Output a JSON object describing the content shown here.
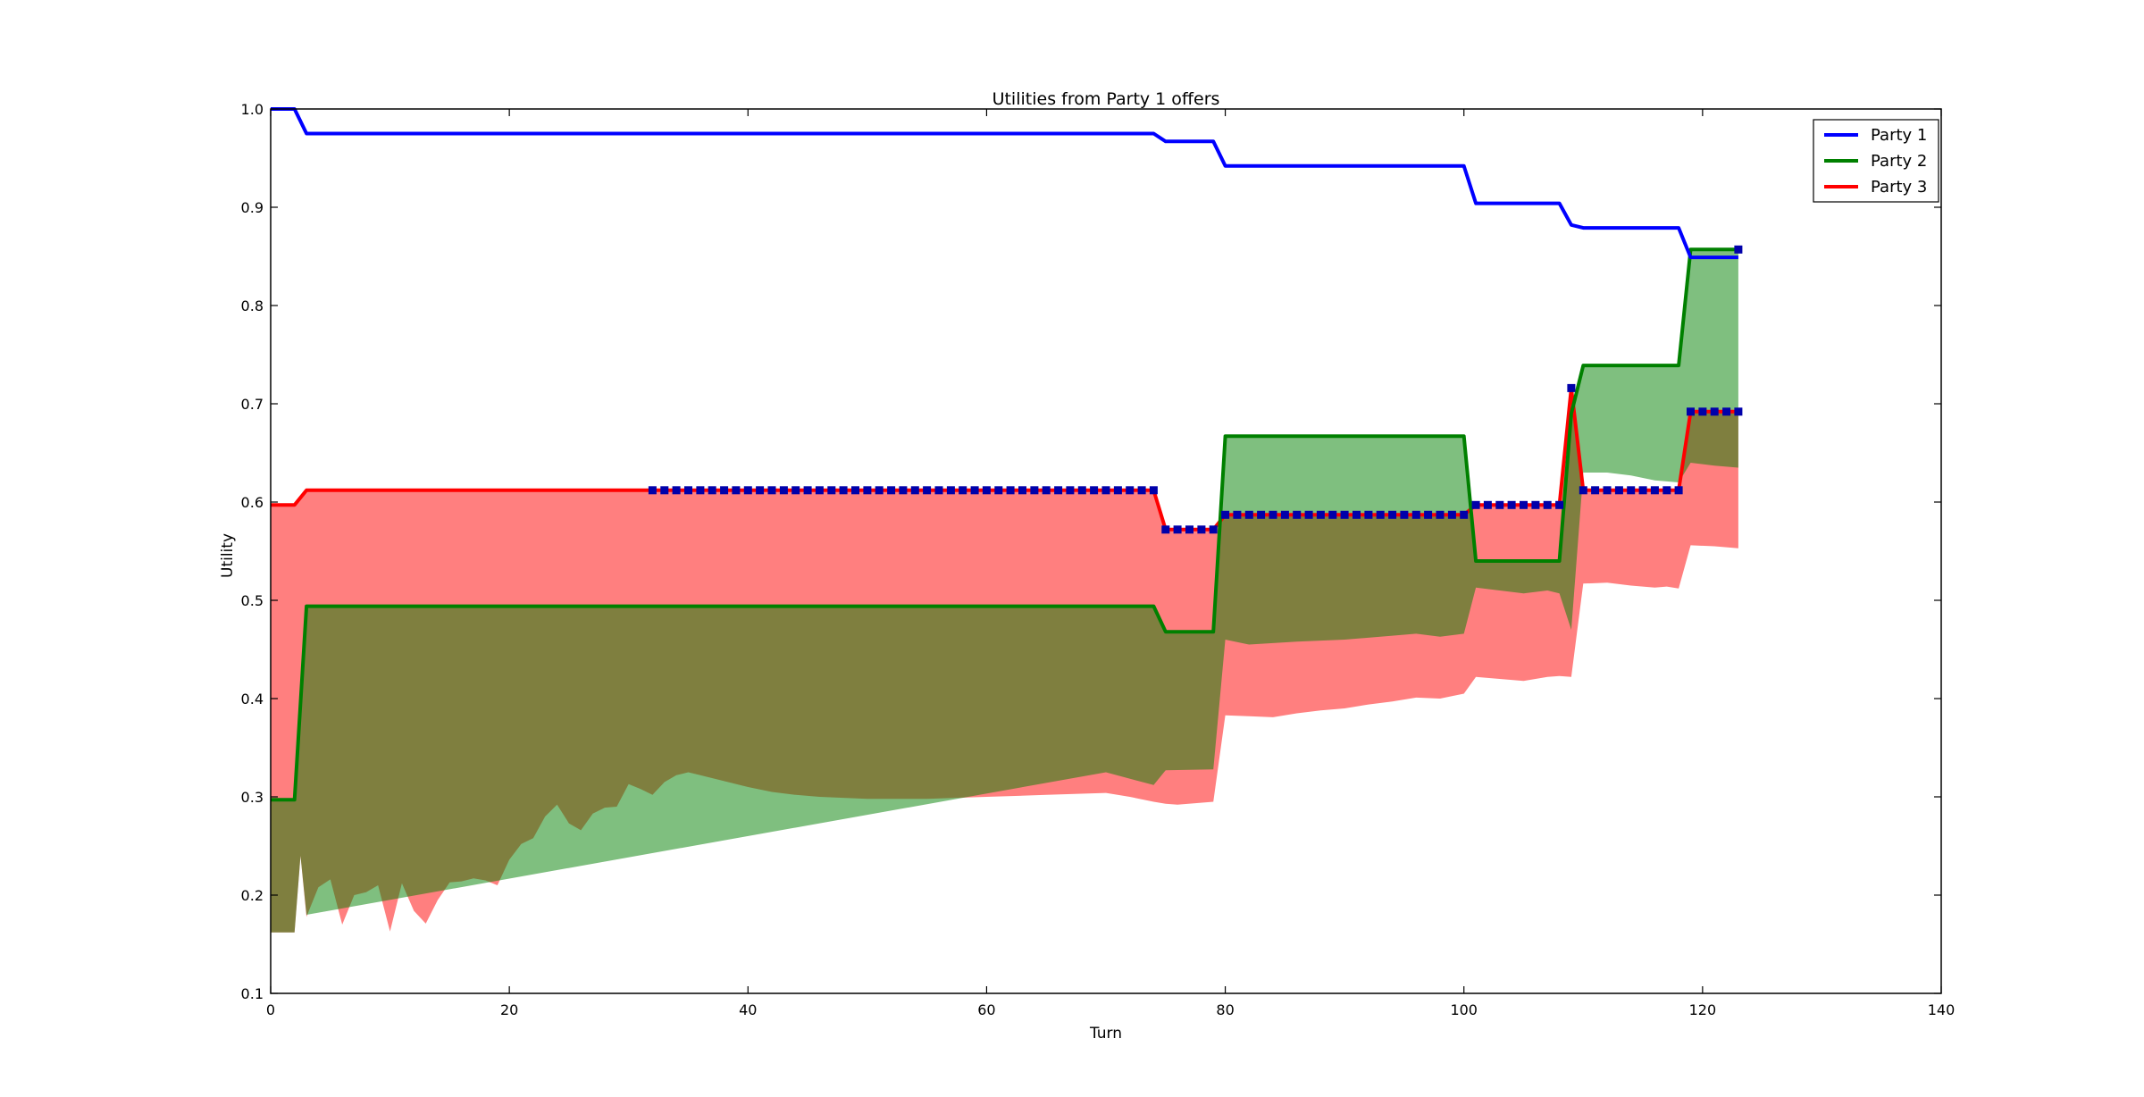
{
  "chart_data": {
    "type": "line",
    "title": "Utilities from Party 1 offers",
    "xlabel": "Turn",
    "ylabel": "Utility",
    "xlim": [
      0,
      140
    ],
    "ylim": [
      0.1,
      1.0
    ],
    "xticks": [
      0,
      20,
      40,
      60,
      80,
      100,
      120,
      140
    ],
    "yticks": [
      0.1,
      0.2,
      0.3,
      0.4,
      0.5,
      0.6,
      0.7,
      0.8,
      0.9,
      1.0
    ],
    "xtick_labels": [
      "0",
      "20",
      "40",
      "60",
      "80",
      "100",
      "120",
      "140"
    ],
    "ytick_labels": [
      "0.1",
      "0.2",
      "0.3",
      "0.4",
      "0.5",
      "0.6",
      "0.7",
      "0.8",
      "0.9",
      "1.0"
    ],
    "grid": false,
    "legend_position": "top-right",
    "series": [
      {
        "name": "Party 1",
        "color": "#0000ff",
        "points": [
          [
            0,
            1.0
          ],
          [
            2,
            1.0
          ],
          [
            3,
            0.975
          ],
          [
            74,
            0.975
          ],
          [
            75,
            0.967
          ],
          [
            79,
            0.967
          ],
          [
            80,
            0.942
          ],
          [
            100,
            0.942
          ],
          [
            101,
            0.904
          ],
          [
            108,
            0.904
          ],
          [
            109,
            0.882
          ],
          [
            110,
            0.879
          ],
          [
            118,
            0.879
          ],
          [
            119,
            0.849
          ],
          [
            123,
            0.849
          ]
        ]
      },
      {
        "name": "Party 2",
        "color": "#008000",
        "points": [
          [
            0,
            0.297
          ],
          [
            2,
            0.297
          ],
          [
            3,
            0.494
          ],
          [
            74,
            0.494
          ],
          [
            75,
            0.468
          ],
          [
            79,
            0.468
          ],
          [
            80,
            0.667
          ],
          [
            100,
            0.667
          ],
          [
            101,
            0.54
          ],
          [
            108,
            0.54
          ],
          [
            109,
            0.69
          ],
          [
            110,
            0.739
          ],
          [
            118,
            0.739
          ],
          [
            119,
            0.857
          ],
          [
            123,
            0.857
          ]
        ],
        "band_lower": [
          [
            0,
            0.162
          ],
          [
            1,
            0.162
          ],
          [
            2,
            0.162
          ],
          [
            2.5,
            0.24
          ],
          [
            3,
            0.18
          ]
        ]
      },
      {
        "name": "Party 3",
        "color": "#ff0000",
        "points": [
          [
            0,
            0.597
          ],
          [
            2,
            0.597
          ],
          [
            3,
            0.612
          ],
          [
            74,
            0.612
          ],
          [
            75,
            0.572
          ],
          [
            79,
            0.572
          ],
          [
            80,
            0.587
          ],
          [
            100,
            0.587
          ],
          [
            101,
            0.597
          ],
          [
            108,
            0.597
          ],
          [
            109,
            0.716
          ],
          [
            110,
            0.612
          ],
          [
            118,
            0.612
          ],
          [
            119,
            0.692
          ],
          [
            123,
            0.692
          ]
        ],
        "band_lower": [
          [
            0,
            0.162
          ],
          [
            2,
            0.162
          ],
          [
            2.5,
            0.24
          ],
          [
            3,
            0.178
          ],
          [
            4,
            0.208
          ],
          [
            5,
            0.216
          ],
          [
            6,
            0.17
          ],
          [
            7,
            0.2
          ],
          [
            8,
            0.203
          ],
          [
            9,
            0.21
          ],
          [
            10,
            0.163
          ],
          [
            11,
            0.212
          ],
          [
            12,
            0.184
          ],
          [
            13,
            0.171
          ],
          [
            14,
            0.195
          ],
          [
            15,
            0.213
          ],
          [
            16,
            0.214
          ],
          [
            17,
            0.217
          ],
          [
            18,
            0.215
          ],
          [
            19,
            0.21
          ],
          [
            20,
            0.236
          ],
          [
            21,
            0.252
          ],
          [
            22,
            0.258
          ],
          [
            23,
            0.28
          ],
          [
            24,
            0.292
          ],
          [
            25,
            0.273
          ],
          [
            26,
            0.266
          ],
          [
            27,
            0.283
          ],
          [
            28,
            0.289
          ],
          [
            29,
            0.29
          ],
          [
            30,
            0.313
          ],
          [
            31,
            0.308
          ],
          [
            32,
            0.302
          ],
          [
            33,
            0.315
          ],
          [
            34,
            0.322
          ],
          [
            35,
            0.325
          ],
          [
            36,
            0.322
          ],
          [
            38,
            0.316
          ],
          [
            40,
            0.31
          ],
          [
            42,
            0.305
          ],
          [
            44,
            0.302
          ],
          [
            46,
            0.3
          ],
          [
            48,
            0.299
          ],
          [
            50,
            0.298
          ],
          [
            55,
            0.298
          ],
          [
            60,
            0.3
          ],
          [
            65,
            0.302
          ],
          [
            70,
            0.304
          ],
          [
            72,
            0.3
          ],
          [
            74,
            0.295
          ],
          [
            75,
            0.293
          ],
          [
            76,
            0.292
          ],
          [
            79,
            0.295
          ],
          [
            80,
            0.383
          ],
          [
            82,
            0.382
          ],
          [
            84,
            0.381
          ],
          [
            86,
            0.385
          ],
          [
            88,
            0.388
          ],
          [
            90,
            0.39
          ],
          [
            92,
            0.394
          ],
          [
            94,
            0.397
          ],
          [
            96,
            0.401
          ],
          [
            98,
            0.4
          ],
          [
            100,
            0.405
          ],
          [
            101,
            0.422
          ],
          [
            103,
            0.42
          ],
          [
            105,
            0.418
          ],
          [
            107,
            0.422
          ],
          [
            108,
            0.423
          ],
          [
            109,
            0.422
          ],
          [
            110,
            0.517
          ],
          [
            112,
            0.518
          ],
          [
            114,
            0.515
          ],
          [
            116,
            0.513
          ],
          [
            117,
            0.514
          ],
          [
            118,
            0.512
          ],
          [
            119,
            0.556
          ],
          [
            121,
            0.555
          ],
          [
            123,
            0.553
          ]
        ],
        "band_mid": [
          [
            0,
            0.297
          ],
          [
            2,
            0.297
          ],
          [
            3,
            0.325
          ],
          [
            70,
            0.325
          ],
          [
            74,
            0.312
          ],
          [
            75,
            0.327
          ],
          [
            79,
            0.328
          ],
          [
            80,
            0.46
          ],
          [
            82,
            0.455
          ],
          [
            86,
            0.458
          ],
          [
            90,
            0.46
          ],
          [
            94,
            0.464
          ],
          [
            96,
            0.466
          ],
          [
            98,
            0.463
          ],
          [
            100,
            0.466
          ],
          [
            101,
            0.513
          ],
          [
            103,
            0.51
          ],
          [
            105,
            0.507
          ],
          [
            107,
            0.51
          ],
          [
            108,
            0.507
          ],
          [
            109,
            0.47
          ],
          [
            110,
            0.63
          ],
          [
            112,
            0.63
          ],
          [
            114,
            0.627
          ],
          [
            116,
            0.622
          ],
          [
            118,
            0.62
          ],
          [
            119,
            0.64
          ],
          [
            121,
            0.637
          ],
          [
            123,
            0.635
          ]
        ]
      }
    ],
    "accepted_markers": {
      "color": "#0000aa",
      "points": [
        [
          32,
          0.612
        ],
        [
          33,
          0.612
        ],
        [
          34,
          0.612
        ],
        [
          35,
          0.612
        ],
        [
          36,
          0.612
        ],
        [
          37,
          0.612
        ],
        [
          38,
          0.612
        ],
        [
          39,
          0.612
        ],
        [
          40,
          0.612
        ],
        [
          41,
          0.612
        ],
        [
          42,
          0.612
        ],
        [
          43,
          0.612
        ],
        [
          44,
          0.612
        ],
        [
          45,
          0.612
        ],
        [
          46,
          0.612
        ],
        [
          47,
          0.612
        ],
        [
          48,
          0.612
        ],
        [
          49,
          0.612
        ],
        [
          50,
          0.612
        ],
        [
          51,
          0.612
        ],
        [
          52,
          0.612
        ],
        [
          53,
          0.612
        ],
        [
          54,
          0.612
        ],
        [
          55,
          0.612
        ],
        [
          56,
          0.612
        ],
        [
          57,
          0.612
        ],
        [
          58,
          0.612
        ],
        [
          59,
          0.612
        ],
        [
          60,
          0.612
        ],
        [
          61,
          0.612
        ],
        [
          62,
          0.612
        ],
        [
          63,
          0.612
        ],
        [
          64,
          0.612
        ],
        [
          65,
          0.612
        ],
        [
          66,
          0.612
        ],
        [
          67,
          0.612
        ],
        [
          68,
          0.612
        ],
        [
          69,
          0.612
        ],
        [
          70,
          0.612
        ],
        [
          71,
          0.612
        ],
        [
          72,
          0.612
        ],
        [
          73,
          0.612
        ],
        [
          74,
          0.612
        ],
        [
          75,
          0.572
        ],
        [
          76,
          0.572
        ],
        [
          77,
          0.572
        ],
        [
          78,
          0.572
        ],
        [
          79,
          0.572
        ],
        [
          80,
          0.587
        ],
        [
          81,
          0.587
        ],
        [
          82,
          0.587
        ],
        [
          83,
          0.587
        ],
        [
          84,
          0.587
        ],
        [
          85,
          0.587
        ],
        [
          86,
          0.587
        ],
        [
          87,
          0.587
        ],
        [
          88,
          0.587
        ],
        [
          89,
          0.587
        ],
        [
          90,
          0.587
        ],
        [
          91,
          0.587
        ],
        [
          92,
          0.587
        ],
        [
          93,
          0.587
        ],
        [
          94,
          0.587
        ],
        [
          95,
          0.587
        ],
        [
          96,
          0.587
        ],
        [
          97,
          0.587
        ],
        [
          98,
          0.587
        ],
        [
          99,
          0.587
        ],
        [
          100,
          0.587
        ],
        [
          101,
          0.597
        ],
        [
          102,
          0.597
        ],
        [
          103,
          0.597
        ],
        [
          104,
          0.597
        ],
        [
          105,
          0.597
        ],
        [
          106,
          0.597
        ],
        [
          107,
          0.597
        ],
        [
          108,
          0.597
        ],
        [
          109,
          0.716
        ],
        [
          110,
          0.612
        ],
        [
          111,
          0.612
        ],
        [
          112,
          0.612
        ],
        [
          113,
          0.612
        ],
        [
          114,
          0.612
        ],
        [
          115,
          0.612
        ],
        [
          116,
          0.612
        ],
        [
          117,
          0.612
        ],
        [
          118,
          0.612
        ],
        [
          119,
          0.692
        ],
        [
          120,
          0.692
        ],
        [
          121,
          0.692
        ],
        [
          122,
          0.692
        ],
        [
          123,
          0.692
        ],
        [
          123,
          0.857
        ]
      ]
    },
    "legend_entries": [
      "Party 1",
      "Party 2",
      "Party 3"
    ]
  }
}
